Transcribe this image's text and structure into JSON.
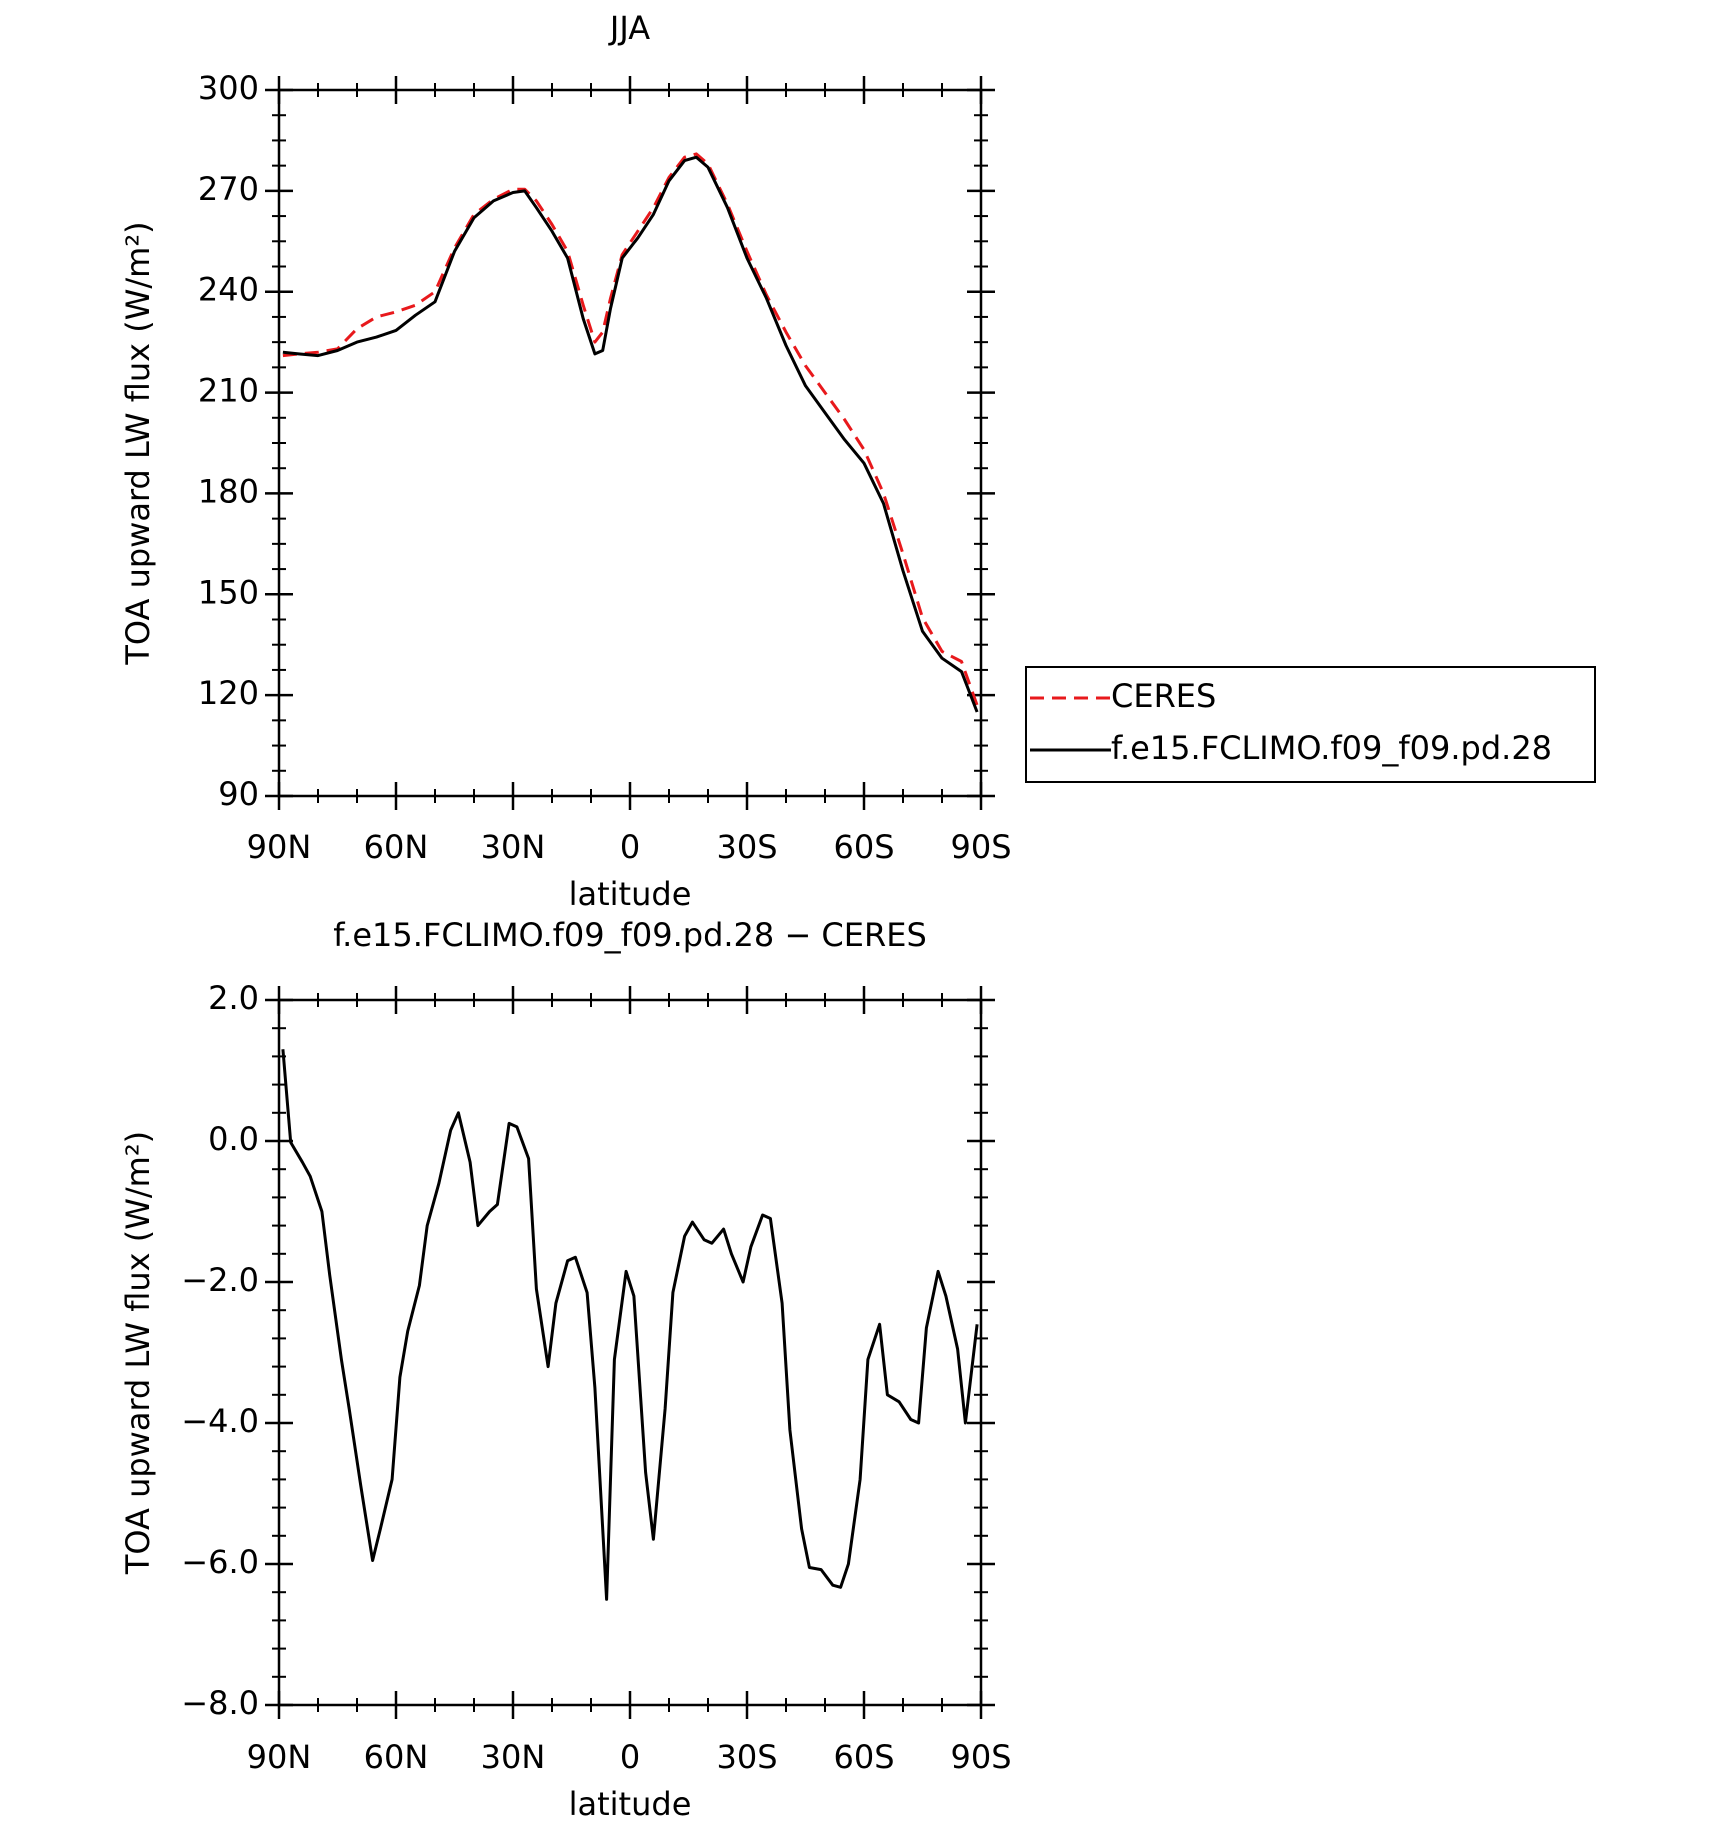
{
  "chart_data": [
    {
      "type": "line",
      "title": "JJA",
      "xlabel": "latitude",
      "ylabel": "TOA upward LW flux (W/m²)",
      "x": [
        89,
        85,
        80,
        75,
        70,
        65,
        60,
        55,
        50,
        45,
        40,
        35,
        30,
        27,
        24,
        20,
        16,
        12,
        9,
        7,
        5,
        2,
        -2,
        -6,
        -10,
        -14,
        -17,
        -20,
        -25,
        -30,
        -35,
        -40,
        -45,
        -50,
        -55,
        -60,
        -65,
        -70,
        -75,
        -80,
        -85,
        -89
      ],
      "series": [
        {
          "name": "CERES",
          "color": "#e8191c",
          "dashed": true,
          "values": [
            221,
            221.5,
            222,
            223,
            229,
            232.5,
            234,
            236,
            240,
            253,
            263,
            267.5,
            270.5,
            270.5,
            267,
            260,
            252,
            236,
            225,
            228,
            238,
            251,
            258,
            265,
            274,
            280,
            281,
            278,
            266,
            252,
            239,
            228,
            218,
            210,
            202,
            193,
            180,
            162,
            143,
            133,
            130,
            117
          ]
        },
        {
          "name": "f.e15.FCLIMO.f09_f09.pd.28",
          "color": "#000000",
          "dashed": false,
          "values": [
            222,
            221.5,
            221,
            222.5,
            225,
            226.5,
            228.5,
            233,
            237,
            252,
            262,
            267,
            269.5,
            270,
            265,
            258,
            250,
            232,
            221.5,
            222.5,
            235,
            250,
            256,
            263,
            273,
            279,
            280,
            277,
            265,
            250,
            238,
            224,
            212,
            204,
            196,
            189,
            177,
            157,
            139,
            131,
            127,
            115
          ]
        }
      ],
      "xlim": [
        90,
        -90
      ],
      "xticks": [
        {
          "value": 90,
          "label": "90N"
        },
        {
          "value": 60,
          "label": "60N"
        },
        {
          "value": 30,
          "label": "30N"
        },
        0,
        {
          "value": -30,
          "label": "30S"
        },
        {
          "value": -60,
          "label": "60S"
        },
        {
          "value": -90,
          "label": "90S"
        }
      ],
      "ylim": [
        90,
        300
      ],
      "yticks": [
        90,
        120,
        150,
        180,
        210,
        240,
        270,
        300
      ],
      "legend": "right"
    },
    {
      "type": "line",
      "title": "f.e15.FCLIMO.f09_f09.pd.28 − CERES",
      "xlabel": "latitude",
      "ylabel": "TOA upward LW flux (W/m²)",
      "x": [
        89,
        87,
        84,
        82,
        79,
        77,
        74,
        72,
        69,
        66,
        64,
        61,
        59,
        57,
        54,
        52,
        49,
        46,
        44,
        41,
        39,
        36,
        34,
        31,
        29,
        26,
        24,
        21,
        19,
        16,
        14,
        11,
        9,
        6,
        4,
        1,
        -1,
        -4,
        -6,
        -9,
        -11,
        -14,
        -16,
        -19,
        -21,
        -24,
        -26,
        -29,
        -31,
        -34,
        -36,
        -39,
        -41,
        -44,
        -46,
        -49,
        -52,
        -54,
        -56,
        -59,
        -61,
        -64,
        -66,
        -69,
        -72,
        -74,
        -76,
        -79,
        -81,
        -84,
        -86,
        -89
      ],
      "series": [
        {
          "name": "difference",
          "color": "#000000",
          "dashed": false,
          "values": [
            1.3,
            -0.02,
            -0.3,
            -0.5,
            -1.0,
            -1.9,
            -3.1,
            -3.8,
            -4.9,
            -5.95,
            -5.5,
            -4.8,
            -3.35,
            -2.7,
            -2.05,
            -1.2,
            -0.6,
            0.15,
            0.4,
            -0.3,
            -1.2,
            -1.0,
            -0.9,
            0.25,
            0.2,
            -0.25,
            -2.1,
            -3.2,
            -2.3,
            -1.7,
            -1.65,
            -2.15,
            -3.5,
            -6.5,
            -3.1,
            -1.85,
            -2.2,
            -4.7,
            -5.65,
            -3.8,
            -2.15,
            -1.35,
            -1.15,
            -1.4,
            -1.45,
            -1.25,
            -1.6,
            -2.0,
            -1.5,
            -1.05,
            -1.1,
            -2.3,
            -4.1,
            -5.5,
            -6.05,
            -6.08,
            -6.3,
            -6.33,
            -6.0,
            -4.8,
            -3.1,
            -2.6,
            -3.6,
            -3.7,
            -3.95,
            -4.0,
            -2.65,
            -1.85,
            -2.2,
            -2.95,
            -4.0,
            -2.6
          ]
        }
      ],
      "xlim": [
        90,
        -90
      ],
      "xticks": [
        {
          "value": 90,
          "label": "90N"
        },
        {
          "value": 60,
          "label": "60N"
        },
        {
          "value": 30,
          "label": "30N"
        },
        0,
        {
          "value": -30,
          "label": "30S"
        },
        {
          "value": -60,
          "label": "60S"
        },
        {
          "value": -90,
          "label": "90S"
        }
      ],
      "ylim": [
        -8,
        2
      ],
      "yticks": [
        {
          "value": -8,
          "label": "−8.0"
        },
        {
          "value": -6,
          "label": "−6.0"
        },
        {
          "value": -4,
          "label": "−4.0"
        },
        {
          "value": -2,
          "label": "−2.0"
        },
        {
          "value": 0,
          "label": "0.0"
        },
        {
          "value": 2,
          "label": "2.0"
        }
      ]
    }
  ]
}
